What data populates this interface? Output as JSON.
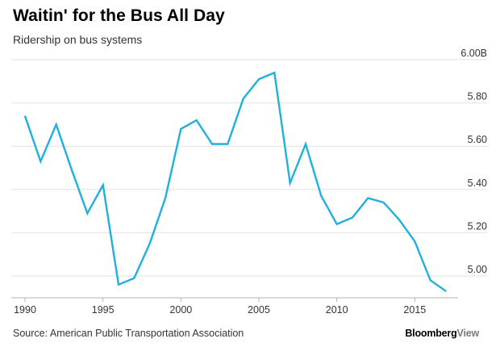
{
  "header": {
    "title": "Waitin' for the Bus All Day",
    "subtitle": "Ridership on bus systems"
  },
  "footer": {
    "source": "Source: American Public Transportation Association",
    "brand_part1": "Bloomberg",
    "brand_part2": "View"
  },
  "colors": {
    "line": "#1fb0e0",
    "grid": "#e2e2e2",
    "axis": "#b3b3b3",
    "text": "#333333"
  },
  "chart_data": {
    "type": "line",
    "title": "Waitin' for the Bus All Day",
    "subtitle": "Ridership on bus systems",
    "xlabel": "",
    "ylabel": "",
    "grid": true,
    "xlim": [
      1990,
      2017
    ],
    "ylim": [
      4.9,
      6.0
    ],
    "x_ticks": [
      1990,
      1995,
      2000,
      2005,
      2010,
      2015
    ],
    "x_tick_labels": [
      "1990",
      "1995",
      "2000",
      "2005",
      "2010",
      "2015"
    ],
    "y_ticks": [
      5.0,
      5.2,
      5.4,
      5.6,
      5.8,
      6.0
    ],
    "y_tick_labels": [
      "5.00",
      "5.20",
      "5.40",
      "5.60",
      "5.80",
      "6.00B"
    ],
    "series": [
      {
        "x": [
          1990,
          1991,
          1992,
          1993,
          1994,
          1995,
          1996,
          1997,
          1998,
          1999,
          2000,
          2001,
          2002,
          2003,
          2004,
          2005,
          2006,
          2007,
          2008,
          2009,
          2010,
          2011,
          2012,
          2013,
          2014,
          2015,
          2016,
          2017
        ],
        "values": [
          5.74,
          5.53,
          5.7,
          5.49,
          5.29,
          5.42,
          4.96,
          4.99,
          5.15,
          5.36,
          5.68,
          5.72,
          5.61,
          5.61,
          5.82,
          5.91,
          5.94,
          5.43,
          5.61,
          5.37,
          5.24,
          5.27,
          5.36,
          5.34,
          5.26,
          5.16,
          4.98,
          4.93
        ]
      }
    ]
  }
}
